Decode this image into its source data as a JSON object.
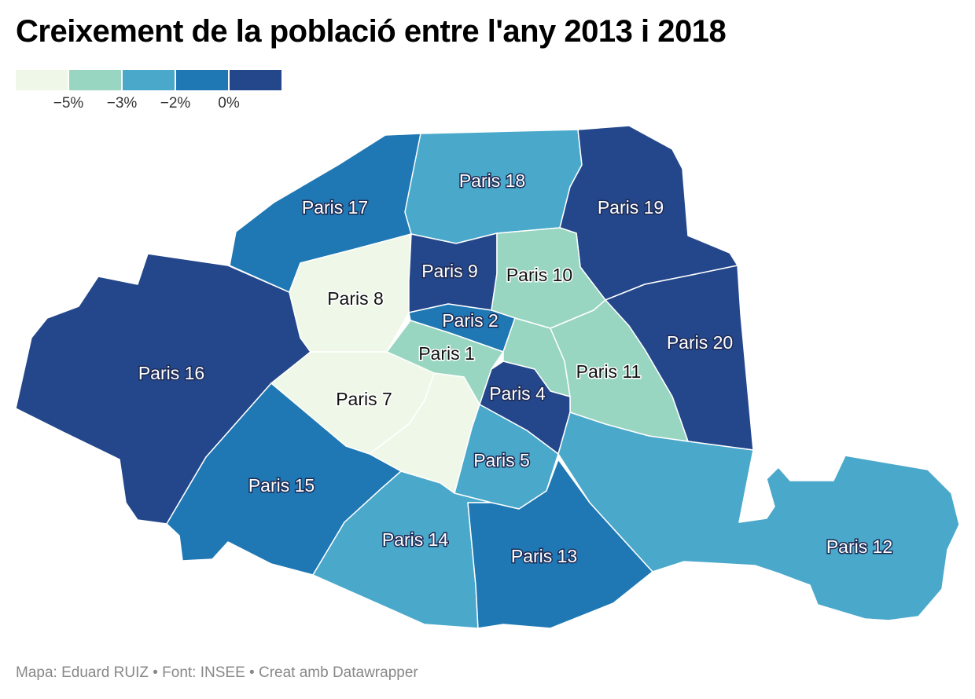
{
  "title": "Creixement de la població entre l'any 2013 i 2018",
  "legend": {
    "colors": [
      "#eff8e8",
      "#98d6c1",
      "#4aa8cb",
      "#1f78b4",
      "#24478b"
    ],
    "ticks": [
      "−5%",
      "−3%",
      "−2%",
      "0%"
    ]
  },
  "footer": "Mapa: Eduard RUIZ • Font: INSEE • Creat amb Datawrapper",
  "regions": [
    {
      "id": "16",
      "label": "Paris 16",
      "color": "#24478b"
    },
    {
      "id": "17",
      "label": "Paris 17",
      "color": "#1f78b4"
    },
    {
      "id": "18",
      "label": "Paris 18",
      "color": "#4aa8cb"
    },
    {
      "id": "19",
      "label": "Paris 19",
      "color": "#24478b"
    },
    {
      "id": "20",
      "label": "Paris 20",
      "color": "#24478b"
    },
    {
      "id": "8",
      "label": "Paris 8",
      "color": "#eff8e8"
    },
    {
      "id": "9",
      "label": "Paris 9",
      "color": "#24478b"
    },
    {
      "id": "10",
      "label": "Paris 10",
      "color": "#98d6c1"
    },
    {
      "id": "2",
      "label": "Paris 2",
      "color": "#1f78b4"
    },
    {
      "id": "1",
      "label": "Paris 1",
      "color": "#98d6c1"
    },
    {
      "id": "3",
      "label": "",
      "color": "#98d6c1"
    },
    {
      "id": "11",
      "label": "Paris 11",
      "color": "#98d6c1"
    },
    {
      "id": "7",
      "label": "Paris 7",
      "color": "#eff8e8"
    },
    {
      "id": "6",
      "label": "",
      "color": "#eff8e8"
    },
    {
      "id": "4",
      "label": "Paris 4",
      "color": "#24478b"
    },
    {
      "id": "5",
      "label": "Paris 5",
      "color": "#4aa8cb"
    },
    {
      "id": "15",
      "label": "Paris 15",
      "color": "#1f78b4"
    },
    {
      "id": "14",
      "label": "Paris 14",
      "color": "#4aa8cb"
    },
    {
      "id": "13",
      "label": "Paris 13",
      "color": "#1f78b4"
    },
    {
      "id": "12",
      "label": "Paris 12",
      "color": "#4aa8cb"
    }
  ]
}
